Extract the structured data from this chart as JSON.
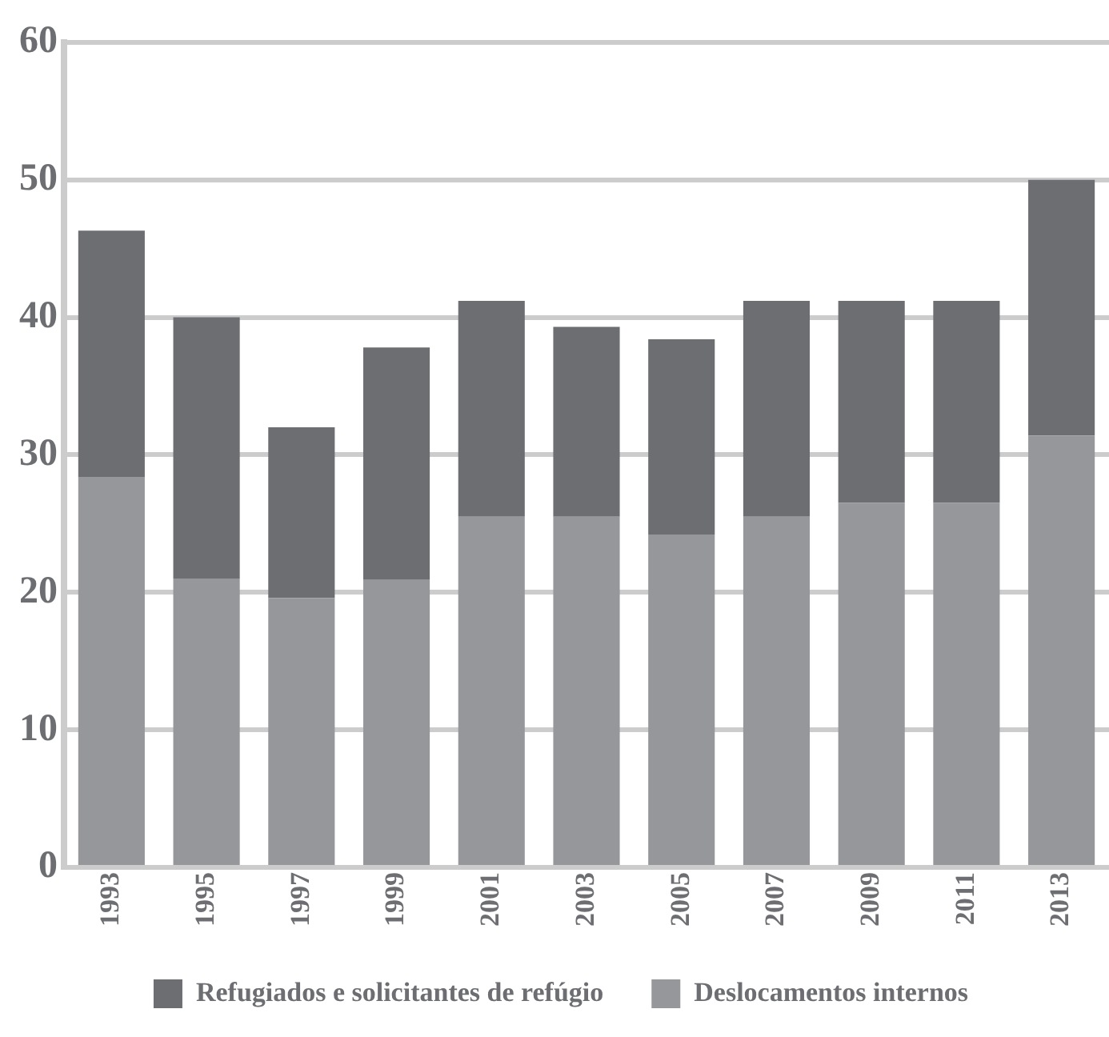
{
  "chart_data": {
    "type": "bar",
    "stacked": true,
    "categories": [
      "1993",
      "1995",
      "1997",
      "1999",
      "2001",
      "2003",
      "2005",
      "2007",
      "2009",
      "2011",
      "2013"
    ],
    "series": [
      {
        "name": "Deslocamentos internos",
        "color": "#96979b",
        "values": [
          28.4,
          21.0,
          19.6,
          20.9,
          25.5,
          25.5,
          24.2,
          25.5,
          26.5,
          26.5,
          31.4
        ]
      },
      {
        "name": "Refugiados e solicitantes de refúgio",
        "color": "#6d6e72",
        "values": [
          17.9,
          19.0,
          12.4,
          16.9,
          15.7,
          13.8,
          14.2,
          15.7,
          14.7,
          14.7,
          18.6
        ]
      }
    ],
    "ylim": [
      0,
      60
    ],
    "yticks": [
      0,
      10,
      20,
      30,
      40,
      50,
      60
    ],
    "grid": "y",
    "legend": "bottom"
  }
}
